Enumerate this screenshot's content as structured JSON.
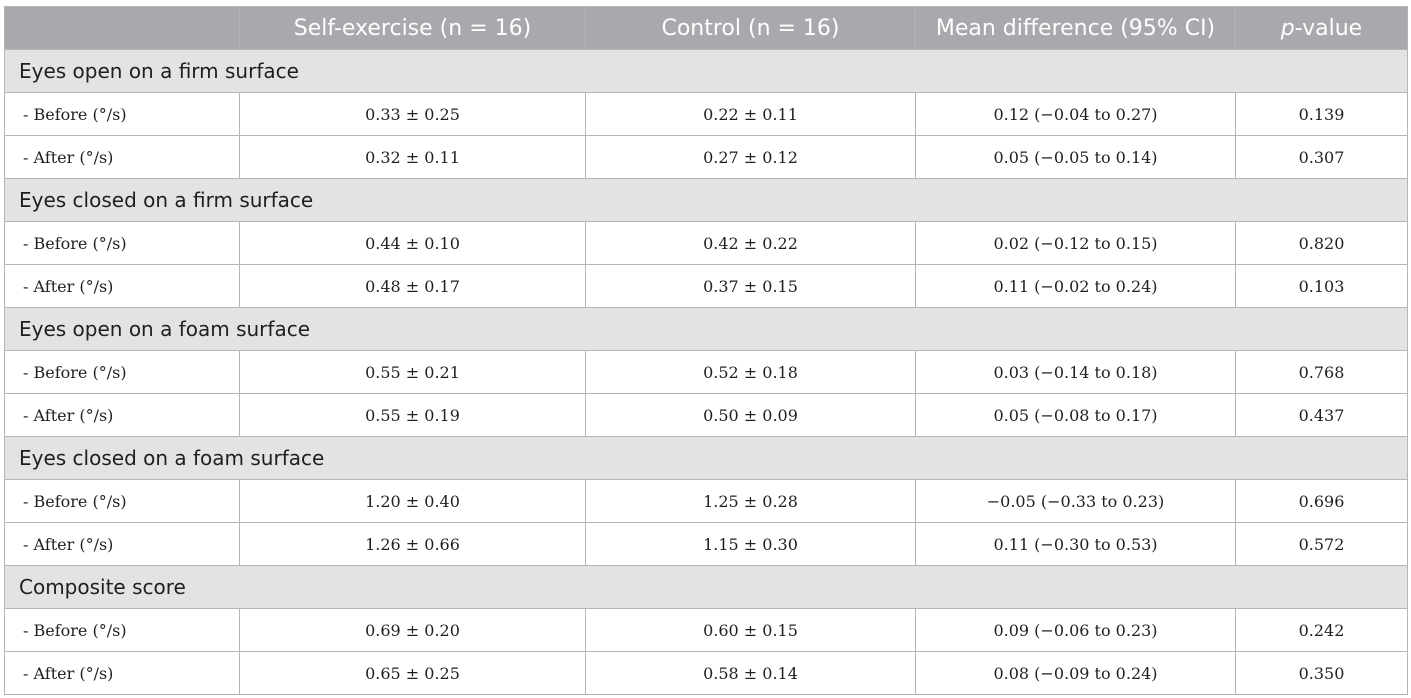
{
  "header": {
    "col0": "",
    "col1": "Self-exercise (n = 16)",
    "col2": "Control (n = 16)",
    "col3": "Mean difference (95% CI)",
    "col4_italic": "p",
    "col4_rest": "-value"
  },
  "sections": [
    {
      "title": "Eyes open on a firm surface",
      "rows": [
        {
          "label": "-  Before (°/s)",
          "self": "0.33 ± 0.25",
          "control": "0.22 ± 0.11",
          "diff": "0.12 (−0.04 to 0.27)",
          "p": "0.139"
        },
        {
          "label": "-  After (°/s)",
          "self": "0.32 ± 0.11",
          "control": "0.27 ± 0.12",
          "diff": "0.05 (−0.05 to 0.14)",
          "p": "0.307"
        }
      ]
    },
    {
      "title": "Eyes closed on a firm surface",
      "rows": [
        {
          "label": "-  Before (°/s)",
          "self": "0.44 ± 0.10",
          "control": "0.42 ± 0.22",
          "diff": "0.02 (−0.12 to 0.15)",
          "p": "0.820"
        },
        {
          "label": "-  After (°/s)",
          "self": "0.48 ± 0.17",
          "control": "0.37 ± 0.15",
          "diff": "0.11 (−0.02 to 0.24)",
          "p": "0.103"
        }
      ]
    },
    {
      "title": "Eyes open on a foam surface",
      "rows": [
        {
          "label": "-  Before (°/s)",
          "self": "0.55 ± 0.21",
          "control": "0.52 ± 0.18",
          "diff": "0.03 (−0.14 to 0.18)",
          "p": "0.768"
        },
        {
          "label": "-  After (°/s)",
          "self": "0.55 ± 0.19",
          "control": "0.50 ± 0.09",
          "diff": "0.05 (−0.08 to 0.17)",
          "p": "0.437"
        }
      ]
    },
    {
      "title": "Eyes closed on a foam surface",
      "rows": [
        {
          "label": "-  Before (°/s)",
          "self": "1.20 ± 0.40",
          "control": "1.25 ± 0.28",
          "diff": "−0.05 (−0.33 to 0.23)",
          "p": "0.696"
        },
        {
          "label": "-  After (°/s)",
          "self": "1.26 ± 0.66",
          "control": "1.15 ± 0.30",
          "diff": "0.11 (−0.30 to 0.53)",
          "p": "0.572"
        }
      ]
    },
    {
      "title": "Composite score",
      "rows": [
        {
          "label": "-  Before (°/s)",
          "self": "0.69 ± 0.20",
          "control": "0.60 ± 0.15",
          "diff": "0.09 (−0.06 to 0.23)",
          "p": "0.242"
        },
        {
          "label": "-  After (°/s)",
          "self": "0.65 ± 0.25",
          "control": "0.58 ± 0.14",
          "diff": "0.08 (−0.09 to 0.24)",
          "p": "0.350"
        }
      ]
    }
  ]
}
